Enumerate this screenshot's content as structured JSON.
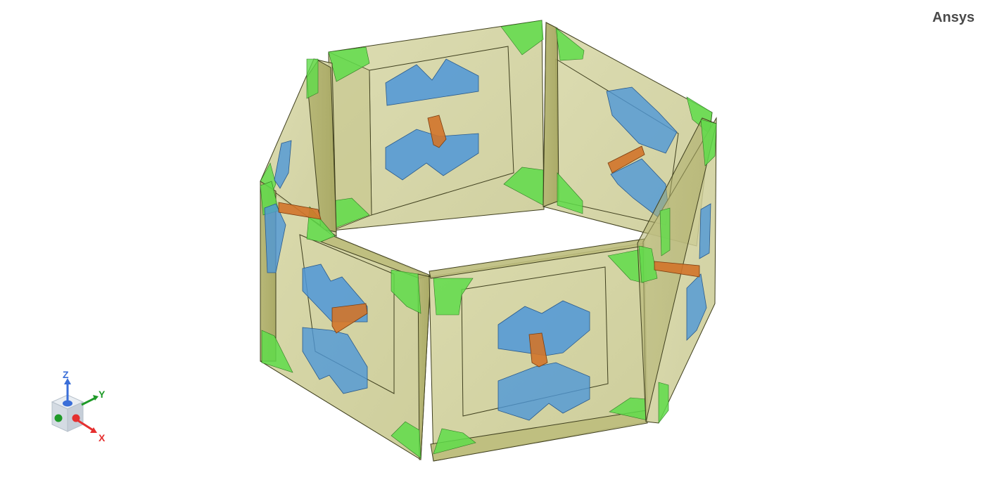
{
  "app": {
    "brand": "Ansys"
  },
  "triad": {
    "x_label": "X",
    "y_label": "Y",
    "z_label": "Z",
    "colors": {
      "x": "#e53030",
      "y": "#1e9a28",
      "z": "#3a6ed8"
    }
  },
  "model": {
    "description_colors": {
      "panel_fill": "#cfcf98",
      "panel_edge": "#3f3f1e",
      "corner_fill": "#5fdc4a",
      "patch_fill": "#4e97d8",
      "feed_fill": "#d2742a"
    }
  }
}
